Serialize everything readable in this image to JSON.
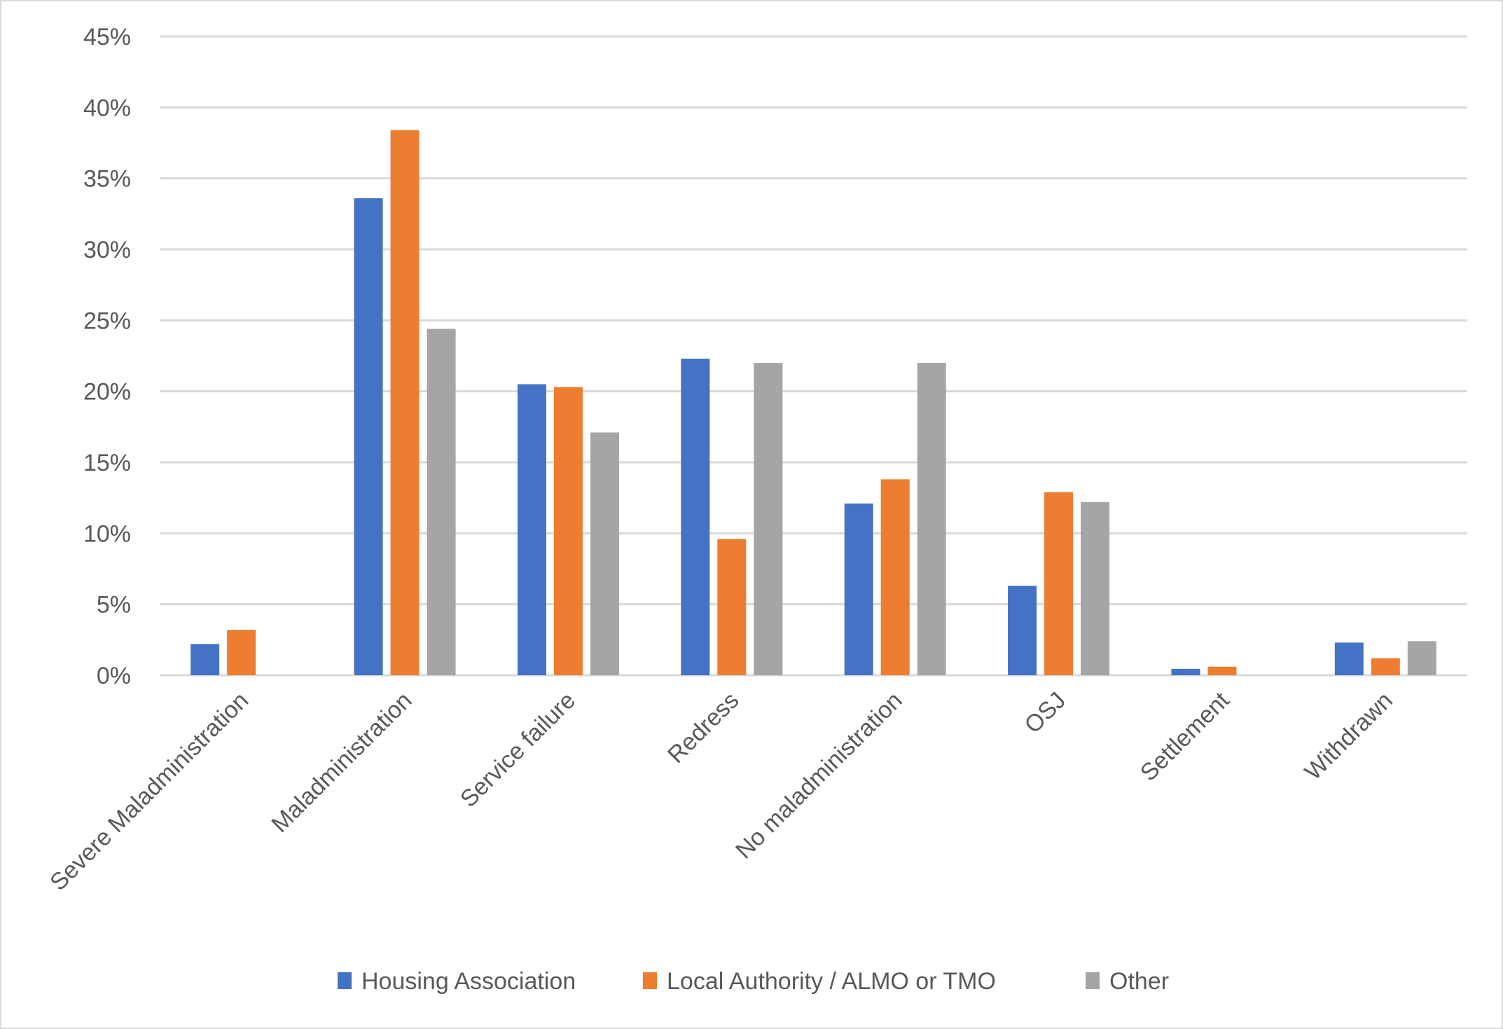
{
  "chart_data": {
    "type": "bar",
    "title": "",
    "xlabel": "",
    "ylabel": "",
    "ylim": [
      0,
      45
    ],
    "y_ticks": [
      "0%",
      "5%",
      "10%",
      "15%",
      "20%",
      "25%",
      "30%",
      "35%",
      "40%",
      "45%"
    ],
    "y_tick_values": [
      0,
      5,
      10,
      15,
      20,
      25,
      30,
      35,
      40,
      45
    ],
    "grid": true,
    "legend_position": "bottom",
    "categories": [
      "Severe Maladministration",
      "Maladministration",
      "Service failure",
      "Redress",
      "No maladministration",
      "OSJ",
      "Settlement",
      "Withdrawn"
    ],
    "series": [
      {
        "name": "Housing Association",
        "color": "#4472c4",
        "values": [
          2.2,
          33.6,
          20.5,
          22.3,
          12.1,
          6.3,
          0.45,
          2.3
        ]
      },
      {
        "name": "Local Authority / ALMO or TMO",
        "color": "#ed7d31",
        "values": [
          3.2,
          38.4,
          20.3,
          9.6,
          13.8,
          12.9,
          0.6,
          1.2
        ]
      },
      {
        "name": "Other",
        "color": "#a5a5a5",
        "values": [
          0,
          24.4,
          17.1,
          22.0,
          22.0,
          12.2,
          0,
          2.4
        ]
      }
    ]
  }
}
